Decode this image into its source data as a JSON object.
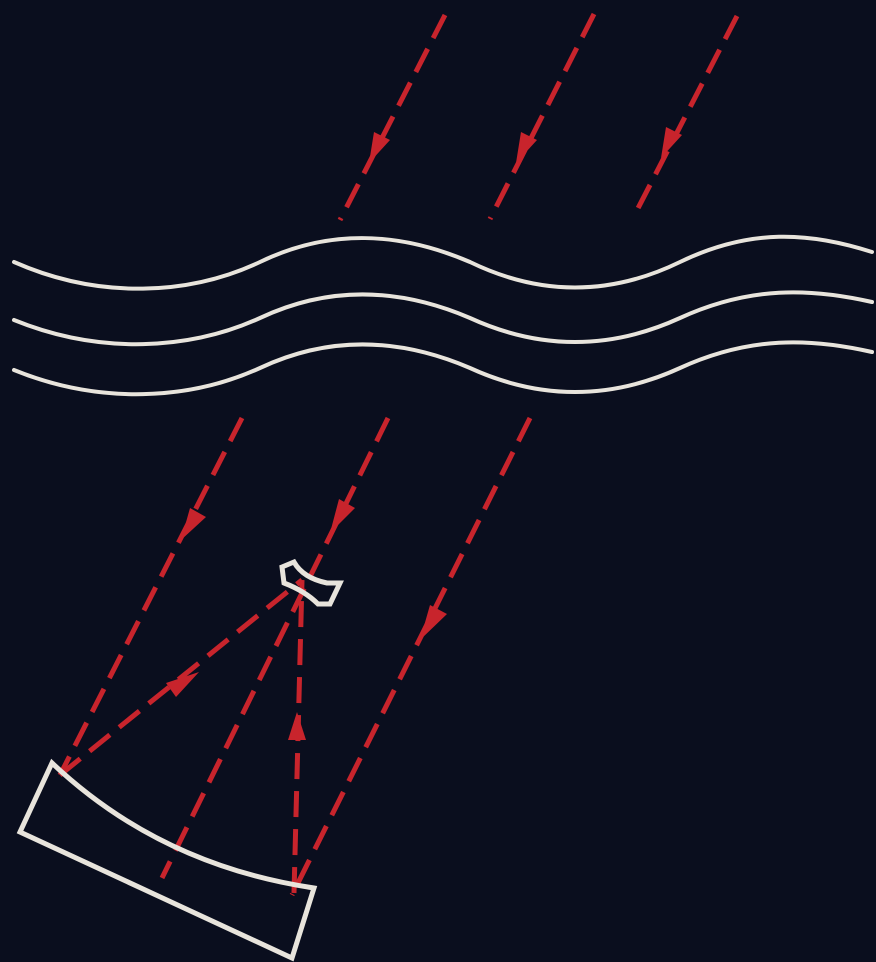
{
  "diagram": {
    "background_color": "#0a0e1e",
    "ray_color": "#c8242c",
    "outline_color": "#e8e4dc",
    "elements": {
      "incoming_rays": 3,
      "atmosphere_waves": 3,
      "refracted_rays": 3,
      "reflected_rays": 2,
      "primary_mirror": "concave-mirror",
      "secondary_mirror": "small-secondary-mirror"
    }
  }
}
